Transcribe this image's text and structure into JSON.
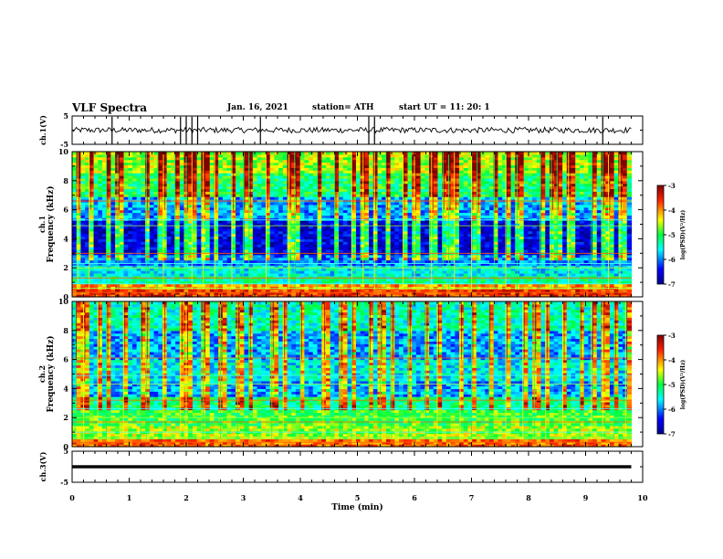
{
  "header": {
    "title": "VLF Spectra",
    "date": "Jan. 16, 2021",
    "station": "station= ATH",
    "start": "start UT =   11: 20: 1"
  },
  "chart_data": [
    {
      "type": "line",
      "name": "ch1-waveform",
      "ylabel": "ch.1(V)",
      "ylim": [
        -5,
        5
      ],
      "yticks": [
        "5",
        "-5"
      ],
      "xlim": [
        0,
        10
      ],
      "data_extent_min": 9.8,
      "baseline_v": 0.0,
      "noise_amplitude_v": 1.0,
      "spike_positions_min": [
        0.7,
        1.9,
        2.0,
        2.1,
        2.2,
        3.3,
        5.2,
        5.3,
        9.3
      ]
    },
    {
      "type": "heatmap",
      "name": "ch1-spectrogram",
      "ylabel": "Frequency (kHz)",
      "channel_label": "ch.1",
      "ylim": [
        0,
        10
      ],
      "yticks": [
        "0",
        "2",
        "4",
        "6",
        "8",
        "10"
      ],
      "xlim": [
        0,
        10
      ],
      "data_extent_min": 9.8,
      "colorbar": {
        "min": -7,
        "max": -3,
        "ticks": [
          "-3",
          "-4",
          "-5",
          "-6",
          "-7"
        ],
        "label": "log(PSD)(V²/Hz)"
      },
      "level_by_band_khz": [
        [
          0.0,
          0.5,
          -3.6
        ],
        [
          0.5,
          0.9,
          -4.0
        ],
        [
          0.9,
          1.5,
          -5.3
        ],
        [
          1.5,
          2.2,
          -5.6
        ],
        [
          2.2,
          3.0,
          -6.0
        ],
        [
          3.0,
          5.2,
          -6.6
        ],
        [
          5.2,
          7.0,
          -5.9
        ],
        [
          7.0,
          8.5,
          -5.1
        ],
        [
          8.5,
          10.0,
          -4.6
        ]
      ],
      "horizontal_lines_khz": [
        0.3,
        0.6,
        0.9,
        1.3,
        2.0,
        2.3,
        3.0,
        4.9,
        5.3,
        6.6
      ],
      "sferic_times_min": [
        0.1,
        0.3,
        0.6,
        0.8,
        1.3,
        1.5,
        1.6,
        1.8,
        2.0,
        2.1,
        2.3,
        2.5,
        2.8,
        3.0,
        3.1,
        3.4,
        3.8,
        3.9,
        4.3,
        4.6,
        4.9,
        5.1,
        5.3,
        5.5,
        5.8,
        6.0,
        6.3,
        6.5,
        6.6,
        6.7,
        7.0,
        7.1,
        7.4,
        7.6,
        7.8,
        8.2,
        8.4,
        8.5,
        8.7,
        9.1,
        9.3,
        9.4,
        9.6
      ]
    },
    {
      "type": "heatmap",
      "name": "ch2-spectrogram",
      "ylabel": "Frequency (kHz)",
      "channel_label": "ch.2",
      "ylim": [
        0,
        10
      ],
      "yticks": [
        "0",
        "2",
        "4",
        "6",
        "8",
        "10"
      ],
      "xlim": [
        0,
        10
      ],
      "data_extent_min": 9.8,
      "colorbar": {
        "min": -7,
        "max": -3,
        "ticks": [
          "-3",
          "-4",
          "-5",
          "-6",
          "-7"
        ],
        "label": "log(PSD)(V²/Hz)"
      },
      "level_by_band_khz": [
        [
          0.0,
          0.6,
          -3.8
        ],
        [
          0.6,
          1.5,
          -4.6
        ],
        [
          1.5,
          2.5,
          -4.9
        ],
        [
          2.5,
          3.5,
          -5.2
        ],
        [
          3.5,
          4.5,
          -5.9
        ],
        [
          4.5,
          6.0,
          -5.6
        ],
        [
          6.0,
          8.0,
          -5.9
        ],
        [
          8.0,
          10.0,
          -5.4
        ]
      ],
      "horizontal_lines_khz": [
        0.3,
        0.6,
        1.0,
        1.7,
        2.0,
        2.6,
        3.2,
        4.3,
        4.9,
        6.1
      ],
      "sferic_times_min": [
        0.05,
        0.2,
        0.45,
        0.6,
        0.9,
        1.2,
        1.3,
        1.6,
        1.9,
        2.0,
        2.3,
        2.6,
        2.9,
        3.1,
        3.5,
        3.7,
        4.0,
        4.4,
        4.7,
        4.9,
        5.2,
        5.4,
        5.6,
        5.9,
        6.2,
        6.4,
        6.8,
        7.0,
        7.3,
        7.6,
        7.9,
        8.1,
        8.3,
        8.6,
        8.9,
        9.1,
        9.3,
        9.5,
        9.7
      ]
    },
    {
      "type": "line",
      "name": "ch3-waveform",
      "ylabel": "ch.3(V)",
      "ylim": [
        -5,
        5
      ],
      "yticks": [
        "5",
        "-5"
      ],
      "xlim": [
        0,
        10
      ],
      "xlabel": "Time (min)",
      "xticks": [
        "0",
        "1",
        "2",
        "3",
        "4",
        "5",
        "6",
        "7",
        "8",
        "9",
        "10"
      ],
      "data_extent_min": 9.8,
      "baseline_v": 0.0,
      "band_thickness_v": 1.0
    }
  ],
  "colors": {
    "axes": "#000000",
    "background": "#ffffff"
  }
}
